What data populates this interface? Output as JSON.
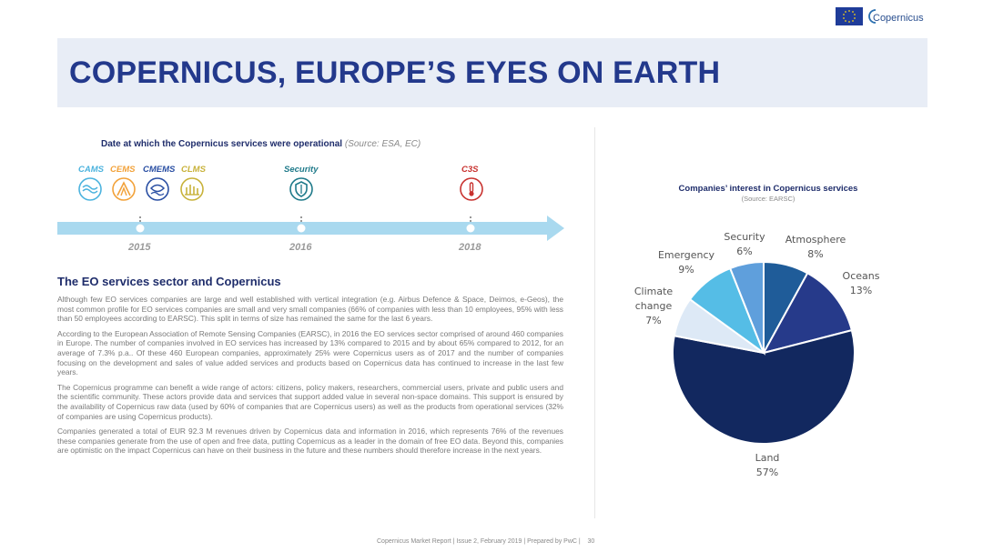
{
  "page": {
    "title": "COPERNICUS, EUROPE’S EYES ON EARTH",
    "logo_text": "Copernicus",
    "footer": "Copernicus Market Report | Issue 2, February 2019 | Prepared by PwC |",
    "page_number": "30"
  },
  "timeline": {
    "title": "Date at which the Copernicus services were operational",
    "source": "(Source: ESA, EC)",
    "services": [
      {
        "label": "CAMS",
        "icon": "atmosphere-icon",
        "color": "#4cb3de"
      },
      {
        "label": "CEMS",
        "icon": "emergency-icon",
        "color": "#f2a23a"
      },
      {
        "label": "CMEMS",
        "icon": "marine-icon",
        "color": "#2a4fa3"
      },
      {
        "label": "CLMS",
        "icon": "land-icon",
        "color": "#c8b23a"
      },
      {
        "label": "Security",
        "icon": "shield-icon",
        "color": "#1f7a8a"
      },
      {
        "label": "C3S",
        "icon": "thermometer-icon",
        "color": "#c8322f"
      }
    ],
    "years": [
      "2015",
      "2016",
      "2018"
    ]
  },
  "section": {
    "heading": "The EO services sector and Copernicus",
    "paragraphs": [
      "Although few EO services companies are large and well established with vertical integration (e.g. Airbus Defence & Space, Deimos, e-Geos), the most common profile for EO services companies are small and very small companies (66% of companies with less than 10 employees, 95% with less than 50 employees according to EARSC). This split in terms of size has remained the same for the last 6 years.",
      "According to the European Association of Remote Sensing Companies (EARSC), in 2016 the EO services sector comprised of around 460 companies in Europe. The number of companies involved in EO services has increased by 13% compared to 2015 and by about 65% compared to 2012, for an average of 7.3% p.a.. Of these 460 European companies, approximately 25% were Copernicus users as of 2017 and the number of companies focusing on the development and sales of value added services and products based on Copernicus data has continued to increase in the last few years.",
      "The Copernicus programme can benefit a wide range of actors: citizens, policy makers, researchers, commercial users, private and public users and the scientific community. These actors provide data and services that support added value in several non-space domains. This support is ensured by the availability of Copernicus raw data (used by 60% of companies that are Copernicus users) as well as the products from operational services (32% of companies are using Copernicus products).",
      "Companies generated a total of EUR 92.3 M revenues driven by Copernicus data and information in 2016, which represents 76% of the revenues these companies generate from the use of open and free data, putting Copernicus as a leader in the domain of free EO data. Beyond this, companies are optimistic on the impact Copernicus can have on their business in the future and these numbers should therefore increase in the next years."
    ]
  },
  "chart_data": {
    "type": "pie",
    "title": "Companies’ interest in Copernicus services",
    "subtitle": "(Source: EARSC)",
    "slices": [
      {
        "label": "Atmosphere",
        "value": 8,
        "display": "8%",
        "color": "#1f5c99"
      },
      {
        "label": "Oceans",
        "value": 13,
        "display": "13%",
        "color": "#263a8a"
      },
      {
        "label": "Land",
        "value": 57,
        "display": "57%",
        "color": "#12285f"
      },
      {
        "label": "Climate change",
        "value": 7,
        "display": "7%",
        "color": "#dde9f6"
      },
      {
        "label": "Emergency",
        "value": 9,
        "display": "9%",
        "color": "#55bde6"
      },
      {
        "label": "Security",
        "value": 6,
        "display": "6%",
        "color": "#5f9fdc"
      }
    ],
    "start_angle_deg": 0,
    "direction": "clockwise"
  }
}
